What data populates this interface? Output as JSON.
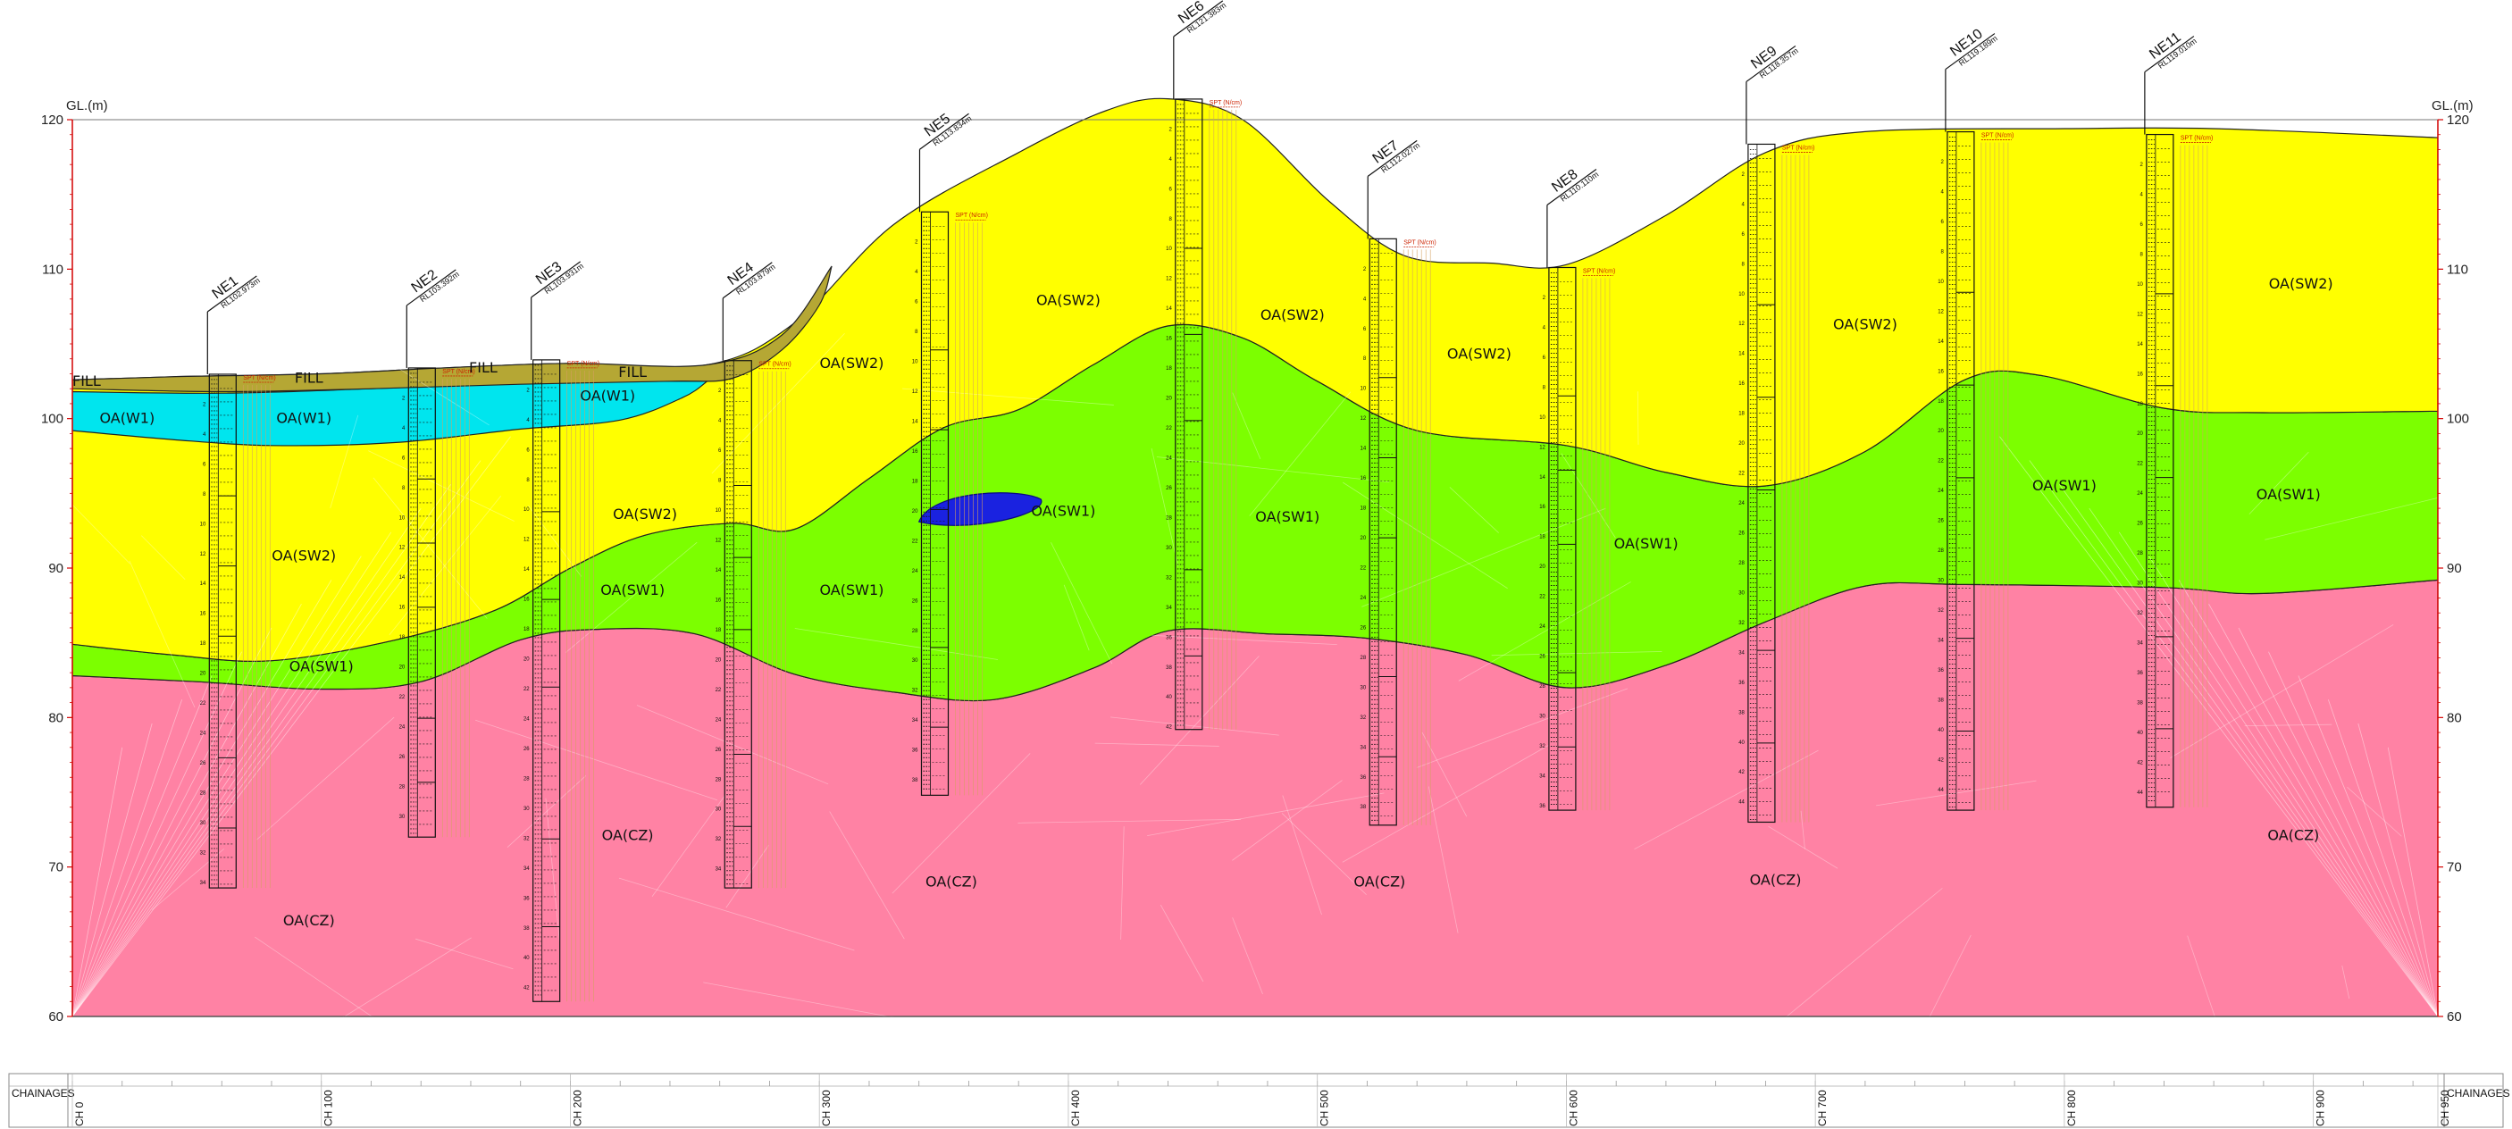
{
  "axis": {
    "unit_label": "GL.(m)",
    "elevations": [
      120,
      110,
      100,
      90,
      80,
      70,
      60
    ],
    "range": [
      60,
      120
    ]
  },
  "chainage": {
    "label": "CHAINAGES",
    "ticks": [
      {
        "ch": 0,
        "label": "CH 0"
      },
      {
        "ch": 100,
        "label": "CH 100"
      },
      {
        "ch": 200,
        "label": "CH 200"
      },
      {
        "ch": 300,
        "label": "CH 300"
      },
      {
        "ch": 400,
        "label": "CH 400"
      },
      {
        "ch": 500,
        "label": "CH 500"
      },
      {
        "ch": 600,
        "label": "CH 600"
      },
      {
        "ch": 700,
        "label": "CH 700"
      },
      {
        "ch": 800,
        "label": "CH 800"
      },
      {
        "ch": 900,
        "label": "CH 900"
      },
      {
        "ch": 950,
        "label": "CH 950"
      }
    ]
  },
  "spt_label": "SPT (N/cm)",
  "colors": {
    "fill": "#b5a734",
    "w1": "#00e5ee",
    "sw2": "#ffff00",
    "sw1": "#7cff00",
    "cz": "#ff82a4",
    "lens": "#1a22e0"
  },
  "boreholes": [
    {
      "name": "NE1",
      "rl": "RL102.973m",
      "ch": 55,
      "top": 102.97,
      "bottom": 68.6,
      "depths": [
        "2",
        "4",
        "6",
        "8",
        "10",
        "12",
        "14",
        "16",
        "18",
        "20",
        "22",
        "24",
        "26",
        "28",
        "30",
        "32",
        "34"
      ]
    },
    {
      "name": "NE2",
      "rl": "RL103.392m",
      "ch": 135,
      "top": 103.39,
      "bottom": 72.0,
      "depths": [
        "2",
        "4",
        "6",
        "8",
        "10",
        "12",
        "14",
        "16",
        "18",
        "20",
        "22",
        "24",
        "26",
        "28",
        "30"
      ]
    },
    {
      "name": "NE3",
      "rl": "RL103.931m",
      "ch": 185,
      "top": 103.93,
      "bottom": 61.0,
      "depths": [
        "2",
        "4",
        "6",
        "8",
        "10",
        "12",
        "14",
        "16",
        "18",
        "20",
        "22",
        "24",
        "26",
        "28",
        "30",
        "32",
        "34",
        "36",
        "38",
        "40",
        "42"
      ]
    },
    {
      "name": "NE4",
      "rl": "RL103.879m",
      "ch": 262,
      "top": 103.88,
      "bottom": 68.6,
      "depths": [
        "2",
        "4",
        "6",
        "8",
        "10",
        "12",
        "14",
        "16",
        "18",
        "20",
        "22",
        "24",
        "26",
        "28",
        "30",
        "32",
        "34"
      ]
    },
    {
      "name": "NE5",
      "rl": "RL113.834m",
      "ch": 341,
      "top": 113.83,
      "bottom": 74.8,
      "depths": [
        "2",
        "4",
        "6",
        "8",
        "10",
        "12",
        "14",
        "16",
        "18",
        "20",
        "22",
        "24",
        "26",
        "28",
        "30",
        "32",
        "34",
        "36",
        "38"
      ]
    },
    {
      "name": "NE6",
      "rl": "RL121.383m",
      "ch": 443,
      "top": 121.38,
      "bottom": 79.2,
      "depths": [
        "2",
        "4",
        "6",
        "8",
        "10",
        "12",
        "14",
        "16",
        "18",
        "20",
        "22",
        "24",
        "26",
        "28",
        "30",
        "32",
        "34",
        "36",
        "38",
        "40",
        "42"
      ]
    },
    {
      "name": "NE7",
      "rl": "RL112.027m",
      "ch": 521,
      "top": 112.03,
      "bottom": 72.8,
      "depths": [
        "2",
        "4",
        "6",
        "8",
        "10",
        "12",
        "14",
        "16",
        "18",
        "20",
        "22",
        "24",
        "26",
        "28",
        "30",
        "32",
        "34",
        "36",
        "38"
      ]
    },
    {
      "name": "NE8",
      "rl": "RL110.110m",
      "ch": 593,
      "top": 110.11,
      "bottom": 73.8,
      "depths": [
        "2",
        "4",
        "6",
        "8",
        "10",
        "12",
        "14",
        "16",
        "18",
        "20",
        "22",
        "24",
        "26",
        "28",
        "30",
        "32",
        "34",
        "36"
      ]
    },
    {
      "name": "NE9",
      "rl": "RL118.357m",
      "ch": 673,
      "top": 118.36,
      "bottom": 73.0,
      "depths": [
        "2",
        "4",
        "6",
        "8",
        "10",
        "12",
        "14",
        "16",
        "18",
        "20",
        "22",
        "24",
        "26",
        "28",
        "30",
        "32",
        "34",
        "36",
        "38",
        "40",
        "42",
        "44"
      ]
    },
    {
      "name": "NE10",
      "rl": "RL119.189m",
      "ch": 753,
      "top": 119.19,
      "bottom": 73.8,
      "depths": [
        "2",
        "4",
        "6",
        "8",
        "10",
        "12",
        "14",
        "16",
        "18",
        "20",
        "22",
        "24",
        "26",
        "28",
        "30",
        "32",
        "34",
        "36",
        "38",
        "40",
        "42",
        "44"
      ]
    },
    {
      "name": "NE11",
      "rl": "RL119.010m",
      "ch": 833,
      "top": 119.01,
      "bottom": 74.0,
      "depths": [
        "2",
        "4",
        "6",
        "8",
        "10",
        "12",
        "14",
        "16",
        "18",
        "20",
        "22",
        "24",
        "26",
        "28",
        "30",
        "32",
        "34",
        "36",
        "38",
        "40",
        "42",
        "44"
      ]
    }
  ],
  "layers": [
    {
      "text": "FILL",
      "ch": 0,
      "elev": 102.2
    },
    {
      "text": "FILL",
      "ch": 95,
      "elev": 102.4
    },
    {
      "text": "FILL",
      "ch": 165,
      "elev": 103.1
    },
    {
      "text": "FILL",
      "ch": 225,
      "elev": 102.8
    },
    {
      "text": "OA(W1)",
      "ch": 22,
      "elev": 99.7
    },
    {
      "text": "OA(W1)",
      "ch": 93,
      "elev": 99.7
    },
    {
      "text": "OA(W1)",
      "ch": 215,
      "elev": 101.2
    },
    {
      "text": "OA(SW2)",
      "ch": 93,
      "elev": 90.5
    },
    {
      "text": "OA(SW2)",
      "ch": 230,
      "elev": 93.3
    },
    {
      "text": "OA(SW2)",
      "ch": 313,
      "elev": 103.4
    },
    {
      "text": "OA(SW2)",
      "ch": 400,
      "elev": 107.6
    },
    {
      "text": "OA(SW2)",
      "ch": 490,
      "elev": 106.6
    },
    {
      "text": "OA(SW2)",
      "ch": 565,
      "elev": 104.0
    },
    {
      "text": "OA(SW2)",
      "ch": 720,
      "elev": 106.0
    },
    {
      "text": "OA(SW2)",
      "ch": 895,
      "elev": 108.7
    },
    {
      "text": "OA(SW1)",
      "ch": 100,
      "elev": 83.1
    },
    {
      "text": "OA(SW1)",
      "ch": 225,
      "elev": 88.2
    },
    {
      "text": "OA(SW1)",
      "ch": 313,
      "elev": 88.2
    },
    {
      "text": "OA(SW1)",
      "ch": 398,
      "elev": 93.5
    },
    {
      "text": "OA(SW1)",
      "ch": 488,
      "elev": 93.1
    },
    {
      "text": "OA(SW1)",
      "ch": 632,
      "elev": 91.3
    },
    {
      "text": "OA(SW1)",
      "ch": 800,
      "elev": 95.2
    },
    {
      "text": "OA(SW1)",
      "ch": 890,
      "elev": 94.6
    },
    {
      "text": "OA(CZ)",
      "ch": 95,
      "elev": 66.1
    },
    {
      "text": "OA(CZ)",
      "ch": 223,
      "elev": 71.8
    },
    {
      "text": "OA(CZ)",
      "ch": 353,
      "elev": 68.7
    },
    {
      "text": "OA(CZ)",
      "ch": 525,
      "elev": 68.7
    },
    {
      "text": "OA(CZ)",
      "ch": 684,
      "elev": 68.8
    },
    {
      "text": "OA(CZ)",
      "ch": 892,
      "elev": 71.8
    }
  ]
}
